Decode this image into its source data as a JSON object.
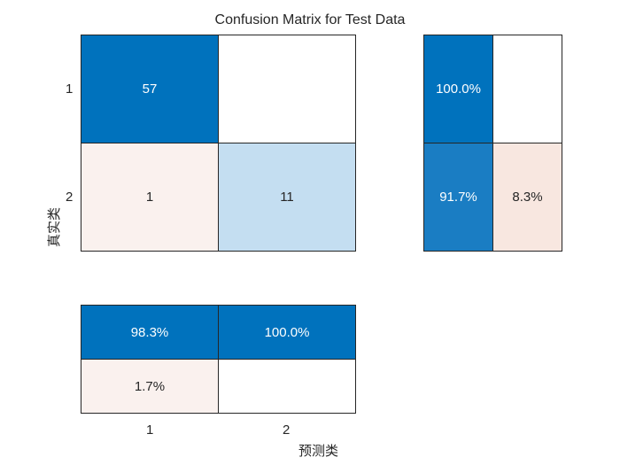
{
  "chart_data": {
    "type": "heatmap",
    "title": "Confusion Matrix for Test Data",
    "ylabel": "真实类",
    "xlabel": "预测类",
    "true_classes": [
      "1",
      "2"
    ],
    "predicted_classes": [
      "1",
      "2"
    ],
    "matrix": [
      [
        57,
        null
      ],
      [
        1,
        11
      ]
    ],
    "row_summary": {
      "rows": [
        [
          "100.0%",
          ""
        ],
        [
          "91.7%",
          "8.3%"
        ]
      ],
      "values": [
        [
          100.0,
          0
        ],
        [
          91.7,
          8.3
        ]
      ]
    },
    "column_summary": {
      "rows": [
        [
          "98.3%",
          "100.0%"
        ],
        [
          "1.7%",
          ""
        ]
      ],
      "values": [
        [
          98.3,
          100.0
        ],
        [
          1.7,
          0
        ]
      ]
    },
    "colors": {
      "correct_strong": "#0072BD",
      "correct_medium": "#1A7DC3",
      "correct_light": "#C4DEF1",
      "incorrect_light": "#FAF1EE",
      "incorrect_medium": "#F8E7E0",
      "empty": "#FFFFFF"
    }
  }
}
